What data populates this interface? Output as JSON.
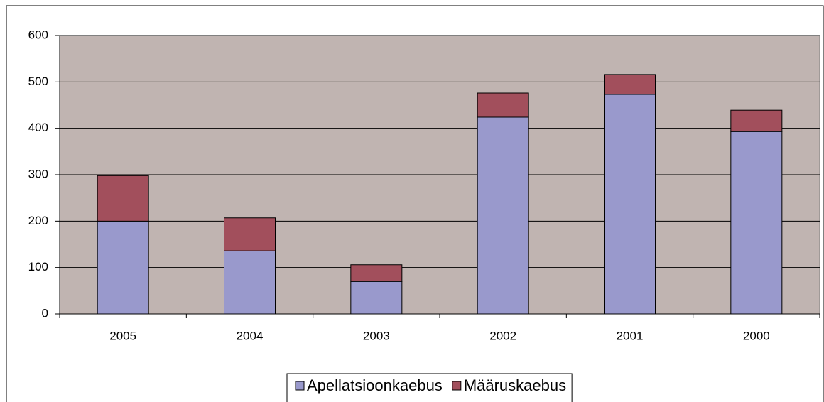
{
  "chart_data": {
    "type": "stacked_bar",
    "categories": [
      "2005",
      "2004",
      "2003",
      "2002",
      "2001",
      "2000"
    ],
    "series": [
      {
        "name": "Apellatsioonkaebus",
        "color": "#9999cc",
        "values": [
          200,
          136,
          70,
          424,
          473,
          393
        ]
      },
      {
        "name": "Määruskaebus",
        "color": "#a24f5c",
        "values": [
          98,
          71,
          36,
          52,
          43,
          46
        ]
      }
    ],
    "ylim": [
      0,
      600
    ],
    "yticks": [
      0,
      100,
      200,
      300,
      400,
      500,
      600
    ],
    "grid": true,
    "legend": "bottom"
  }
}
